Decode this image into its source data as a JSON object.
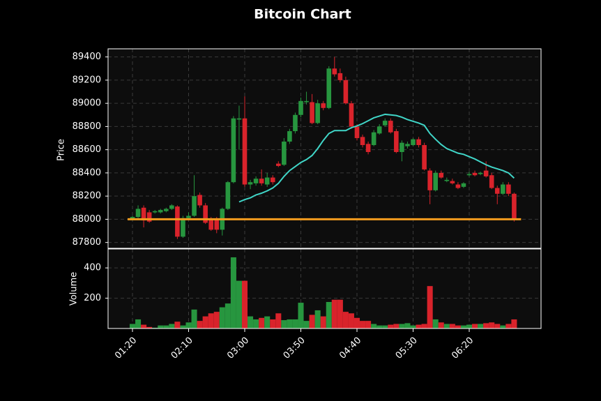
{
  "chart_data": [
    {
      "type": "candlestick",
      "title": "Bitcoin Chart",
      "ylabel": "Price",
      "categories": [
        "01:20",
        null,
        null,
        null,
        null,
        null,
        null,
        null,
        null,
        null,
        "02:10",
        null,
        null,
        null,
        null,
        null,
        null,
        null,
        null,
        null,
        "03:00",
        null,
        null,
        null,
        null,
        null,
        null,
        null,
        null,
        null,
        "03:50",
        null,
        null,
        null,
        null,
        null,
        null,
        null,
        null,
        null,
        "04:40",
        null,
        null,
        null,
        null,
        null,
        null,
        null,
        null,
        null,
        "05:30",
        null,
        null,
        null,
        null,
        null,
        null,
        null,
        null,
        null,
        "06:20",
        null,
        null,
        null,
        null,
        null,
        null,
        null,
        null
      ],
      "open": [
        88000,
        88020,
        88100,
        88060,
        88060,
        88060,
        88070,
        88090,
        88110,
        87850,
        88010,
        88030,
        88210,
        88120,
        88000,
        88000,
        87910,
        88090,
        88320,
        88860,
        88870,
        88300,
        88310,
        88350,
        88300,
        88360,
        88480,
        88470,
        88670,
        88760,
        88900,
        89010,
        89010,
        88830,
        89000,
        88960,
        89300,
        89260,
        89200,
        89000,
        88800,
        88710,
        88650,
        88640,
        88740,
        88810,
        88850,
        88760,
        88580,
        88630,
        88640,
        88690,
        88640,
        88420,
        88250,
        88400,
        88330,
        88330,
        88300,
        88280,
        88380,
        88400,
        88390,
        88420,
        88380,
        88270,
        88220,
        88300,
        88220
      ],
      "high": [
        88030,
        88120,
        88120,
        88080,
        88080,
        88090,
        88100,
        88130,
        88120,
        88030,
        88060,
        88380,
        88230,
        88140,
        88020,
        88020,
        88100,
        88330,
        88890,
        88980,
        89060,
        88340,
        88370,
        88430,
        88400,
        88380,
        88500,
        88700,
        88780,
        88920,
        89050,
        89100,
        89080,
        89030,
        89020,
        89320,
        89400,
        89300,
        89230,
        89020,
        88820,
        88730,
        88670,
        88770,
        88820,
        88870,
        88870,
        88780,
        88680,
        88670,
        88700,
        88710,
        88660,
        88440,
        88420,
        88420,
        88360,
        88350,
        88320,
        88320,
        88410,
        88420,
        88410,
        88500,
        88400,
        88290,
        88320,
        88320,
        88230
      ],
      "low": [
        87990,
        88010,
        87930,
        87970,
        88050,
        88050,
        88060,
        88080,
        87830,
        87840,
        88000,
        88020,
        88100,
        87960,
        87900,
        87880,
        87860,
        88080,
        88310,
        88600,
        88280,
        88260,
        88290,
        88290,
        88280,
        88300,
        88450,
        88460,
        88650,
        88740,
        88880,
        88990,
        88820,
        88820,
        88940,
        88950,
        89230,
        89180,
        88990,
        88780,
        88680,
        88620,
        88560,
        88630,
        88730,
        88800,
        88740,
        88570,
        88500,
        88610,
        88630,
        88620,
        88420,
        88130,
        88240,
        88350,
        88320,
        88300,
        88260,
        88270,
        88370,
        88370,
        88380,
        88360,
        88260,
        88130,
        88210,
        88200,
        87980
      ],
      "close": [
        88020,
        88090,
        87990,
        87980,
        88070,
        88080,
        88090,
        88120,
        87850,
        88010,
        88030,
        88200,
        88120,
        87970,
        87910,
        87910,
        88090,
        88320,
        88870,
        88870,
        88300,
        88320,
        88350,
        88310,
        88360,
        88320,
        88460,
        88670,
        88760,
        88900,
        89020,
        89020,
        88830,
        89000,
        88960,
        89300,
        89250,
        89200,
        89000,
        88800,
        88700,
        88640,
        88580,
        88750,
        88800,
        88850,
        88750,
        88580,
        88660,
        88650,
        88690,
        88640,
        88430,
        88250,
        88400,
        88360,
        88340,
        88310,
        88270,
        88310,
        88390,
        88380,
        88400,
        88370,
        88270,
        88220,
        88300,
        88220,
        88000
      ],
      "up_color": "#27963f",
      "down_color": "#d9232b",
      "moving_average": {
        "color": "#40d6c8",
        "values": [
          null,
          null,
          null,
          null,
          null,
          null,
          null,
          null,
          null,
          null,
          null,
          null,
          null,
          null,
          null,
          null,
          null,
          null,
          null,
          88150,
          88170,
          88185,
          88210,
          88225,
          88245,
          88270,
          88310,
          88370,
          88420,
          88455,
          88490,
          88515,
          88550,
          88610,
          88680,
          88740,
          88765,
          88765,
          88765,
          88790,
          88805,
          88825,
          88850,
          88875,
          88890,
          88905,
          88900,
          88895,
          88880,
          88860,
          88845,
          88830,
          88810,
          88740,
          88690,
          88645,
          88610,
          88590,
          88570,
          88560,
          88540,
          88520,
          88495,
          88470,
          88450,
          88435,
          88420,
          88400,
          88355
        ]
      },
      "reference_line": {
        "value": 88000,
        "color": "#f39c1f"
      },
      "ylim": [
        87750,
        89470
      ],
      "yticks": [
        87800,
        88000,
        88200,
        88400,
        88600,
        88800,
        89000,
        89200,
        89400
      ],
      "grid": true
    },
    {
      "type": "bar",
      "ylabel": "Volume",
      "values": [
        30,
        60,
        25,
        10,
        5,
        20,
        20,
        30,
        45,
        20,
        40,
        125,
        50,
        80,
        100,
        110,
        140,
        165,
        470,
        315,
        315,
        80,
        60,
        70,
        80,
        60,
        100,
        55,
        60,
        60,
        170,
        50,
        90,
        120,
        80,
        175,
        190,
        190,
        110,
        100,
        70,
        50,
        50,
        30,
        20,
        20,
        25,
        30,
        30,
        35,
        20,
        25,
        30,
        280,
        60,
        40,
        30,
        30,
        20,
        20,
        25,
        30,
        30,
        35,
        40,
        30,
        20,
        30,
        60
      ],
      "ylim": [
        0,
        525
      ],
      "yticks": [
        200,
        400
      ],
      "grid": true
    }
  ]
}
